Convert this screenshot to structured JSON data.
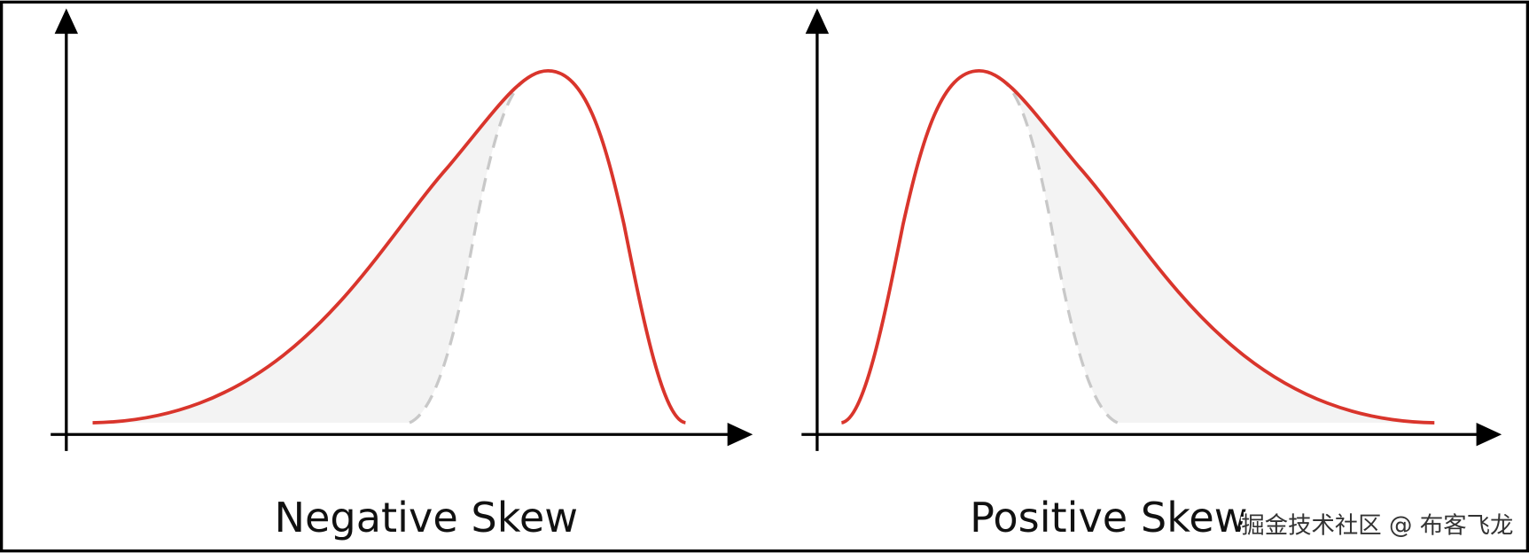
{
  "panels": [
    {
      "label": "Negative Skew"
    },
    {
      "label": "Positive Skew"
    }
  ],
  "watermark": "掘金技术社区 @ 布客飞龙"
}
